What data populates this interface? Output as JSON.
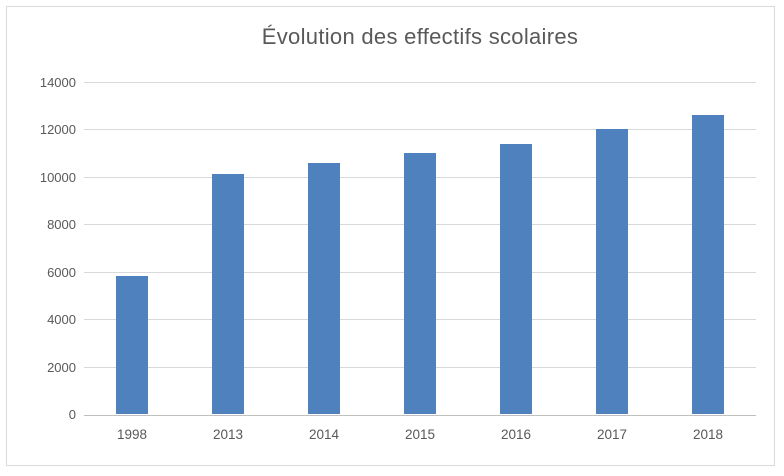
{
  "chart_data": {
    "type": "bar",
    "title": "Évolution des effectifs scolaires",
    "categories": [
      "1998",
      "2013",
      "2014",
      "2015",
      "2016",
      "2017",
      "2018"
    ],
    "values": [
      5800,
      10100,
      10600,
      11000,
      11400,
      12000,
      12600
    ],
    "xlabel": "",
    "ylabel": "",
    "ylim": [
      0,
      14000
    ],
    "yticks": [
      0,
      2000,
      4000,
      6000,
      8000,
      10000,
      12000,
      14000
    ],
    "grid": true,
    "legend": false,
    "colors": {
      "bar": "#4e81bd",
      "gridline": "#d9d9d9",
      "axis_line": "#bfbfbf",
      "text": "#595959",
      "title_text": "#595959",
      "frame_border": "#d9d9d9",
      "background": "#ffffff"
    }
  }
}
